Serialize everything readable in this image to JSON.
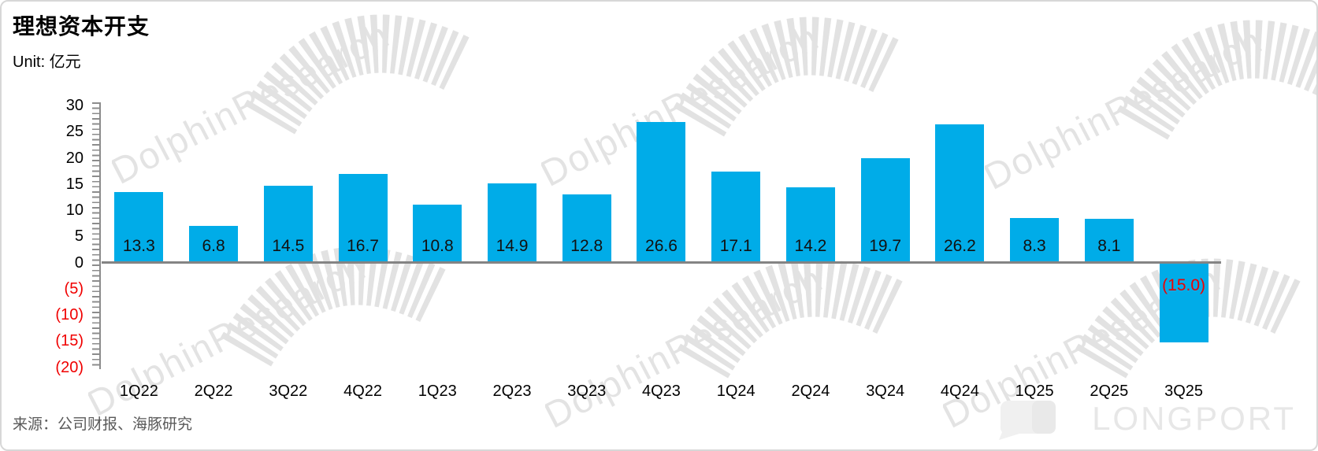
{
  "page": {
    "title": "理想资本开支",
    "unit_label": "Unit: 亿元",
    "source": "来源：公司财报、海豚研究",
    "watermark_text": "DolphinResearch",
    "brand": "LONGPORT"
  },
  "colors": {
    "bar": "#00ace8",
    "negative": "#f00000",
    "axis_gray": "#848484",
    "watermark_gray": "#e2e2e2",
    "label_dark": "#111111",
    "source_gray": "#595959"
  },
  "chart_data": {
    "type": "bar",
    "title": "理想资本开支",
    "unit": "亿元",
    "categories": [
      "1Q22",
      "2Q22",
      "3Q22",
      "4Q22",
      "1Q23",
      "2Q23",
      "3Q23",
      "4Q23",
      "1Q24",
      "2Q24",
      "3Q24",
      "4Q24",
      "1Q25",
      "2Q25",
      "3Q25"
    ],
    "values": [
      13.3,
      6.8,
      14.5,
      16.7,
      10.8,
      14.9,
      12.8,
      26.6,
      17.1,
      14.2,
      19.7,
      26.2,
      8.3,
      8.1,
      -15.0
    ],
    "value_labels": [
      "13.3",
      "6.8",
      "14.5",
      "16.7",
      "10.8",
      "14.9",
      "12.8",
      "26.6",
      "17.1",
      "14.2",
      "19.7",
      "26.2",
      "8.3",
      "8.1",
      "(15.0)"
    ],
    "xlabel": "",
    "ylabel": "",
    "ylim": [
      -20,
      30
    ],
    "ytick_values": [
      30,
      25,
      20,
      15,
      10,
      5,
      0,
      -5,
      -10,
      -15,
      -20
    ],
    "ytick_labels": [
      "30",
      "25",
      "20",
      "15",
      "10",
      "5",
      "0",
      "(5)",
      "(10)",
      "(15)",
      "(20)"
    ],
    "negative_style": "red_parentheses",
    "grid": false,
    "legend": false
  }
}
